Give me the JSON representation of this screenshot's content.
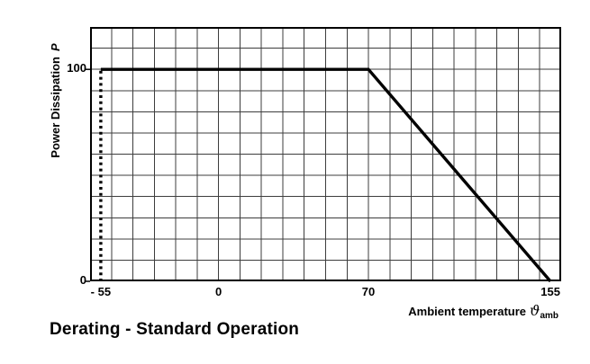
{
  "title": "Derating - Standard Operation",
  "chart": {
    "y_axis_label": {
      "text": "Power Dissipation",
      "symbol": "P"
    },
    "x_axis_label": {
      "text": "Ambient temperature",
      "symbol": "ϑ",
      "subscript": "amb"
    }
  },
  "chart_data": {
    "type": "line",
    "title": "Derating - Standard Operation",
    "xlabel": "Ambient temperature ϑamb",
    "ylabel": "Power Dissipation P",
    "xlim": [
      -60,
      160
    ],
    "ylim": [
      0,
      120
    ],
    "grid": true,
    "grid_step": 10,
    "x_ticks": [
      {
        "value": -55,
        "label": "- 55"
      },
      {
        "value": 0,
        "label": "0"
      },
      {
        "value": 70,
        "label": "70"
      },
      {
        "value": 155,
        "label": "155"
      }
    ],
    "y_ticks": [
      {
        "value": 100,
        "label": "100"
      },
      {
        "value": 0,
        "label": "0"
      }
    ],
    "series": [
      {
        "name": "derating-curve",
        "style": "solid",
        "points": [
          [
            -55,
            100
          ],
          [
            70,
            100
          ],
          [
            155,
            0
          ]
        ]
      },
      {
        "name": "minimum-temperature-boundary",
        "style": "dotted",
        "points": [
          [
            -55,
            0
          ],
          [
            -55,
            100
          ]
        ]
      }
    ],
    "colors": {
      "line": "#000000",
      "grid": "#3d3d3d",
      "border": "#000000",
      "background": "#ffffff"
    }
  }
}
